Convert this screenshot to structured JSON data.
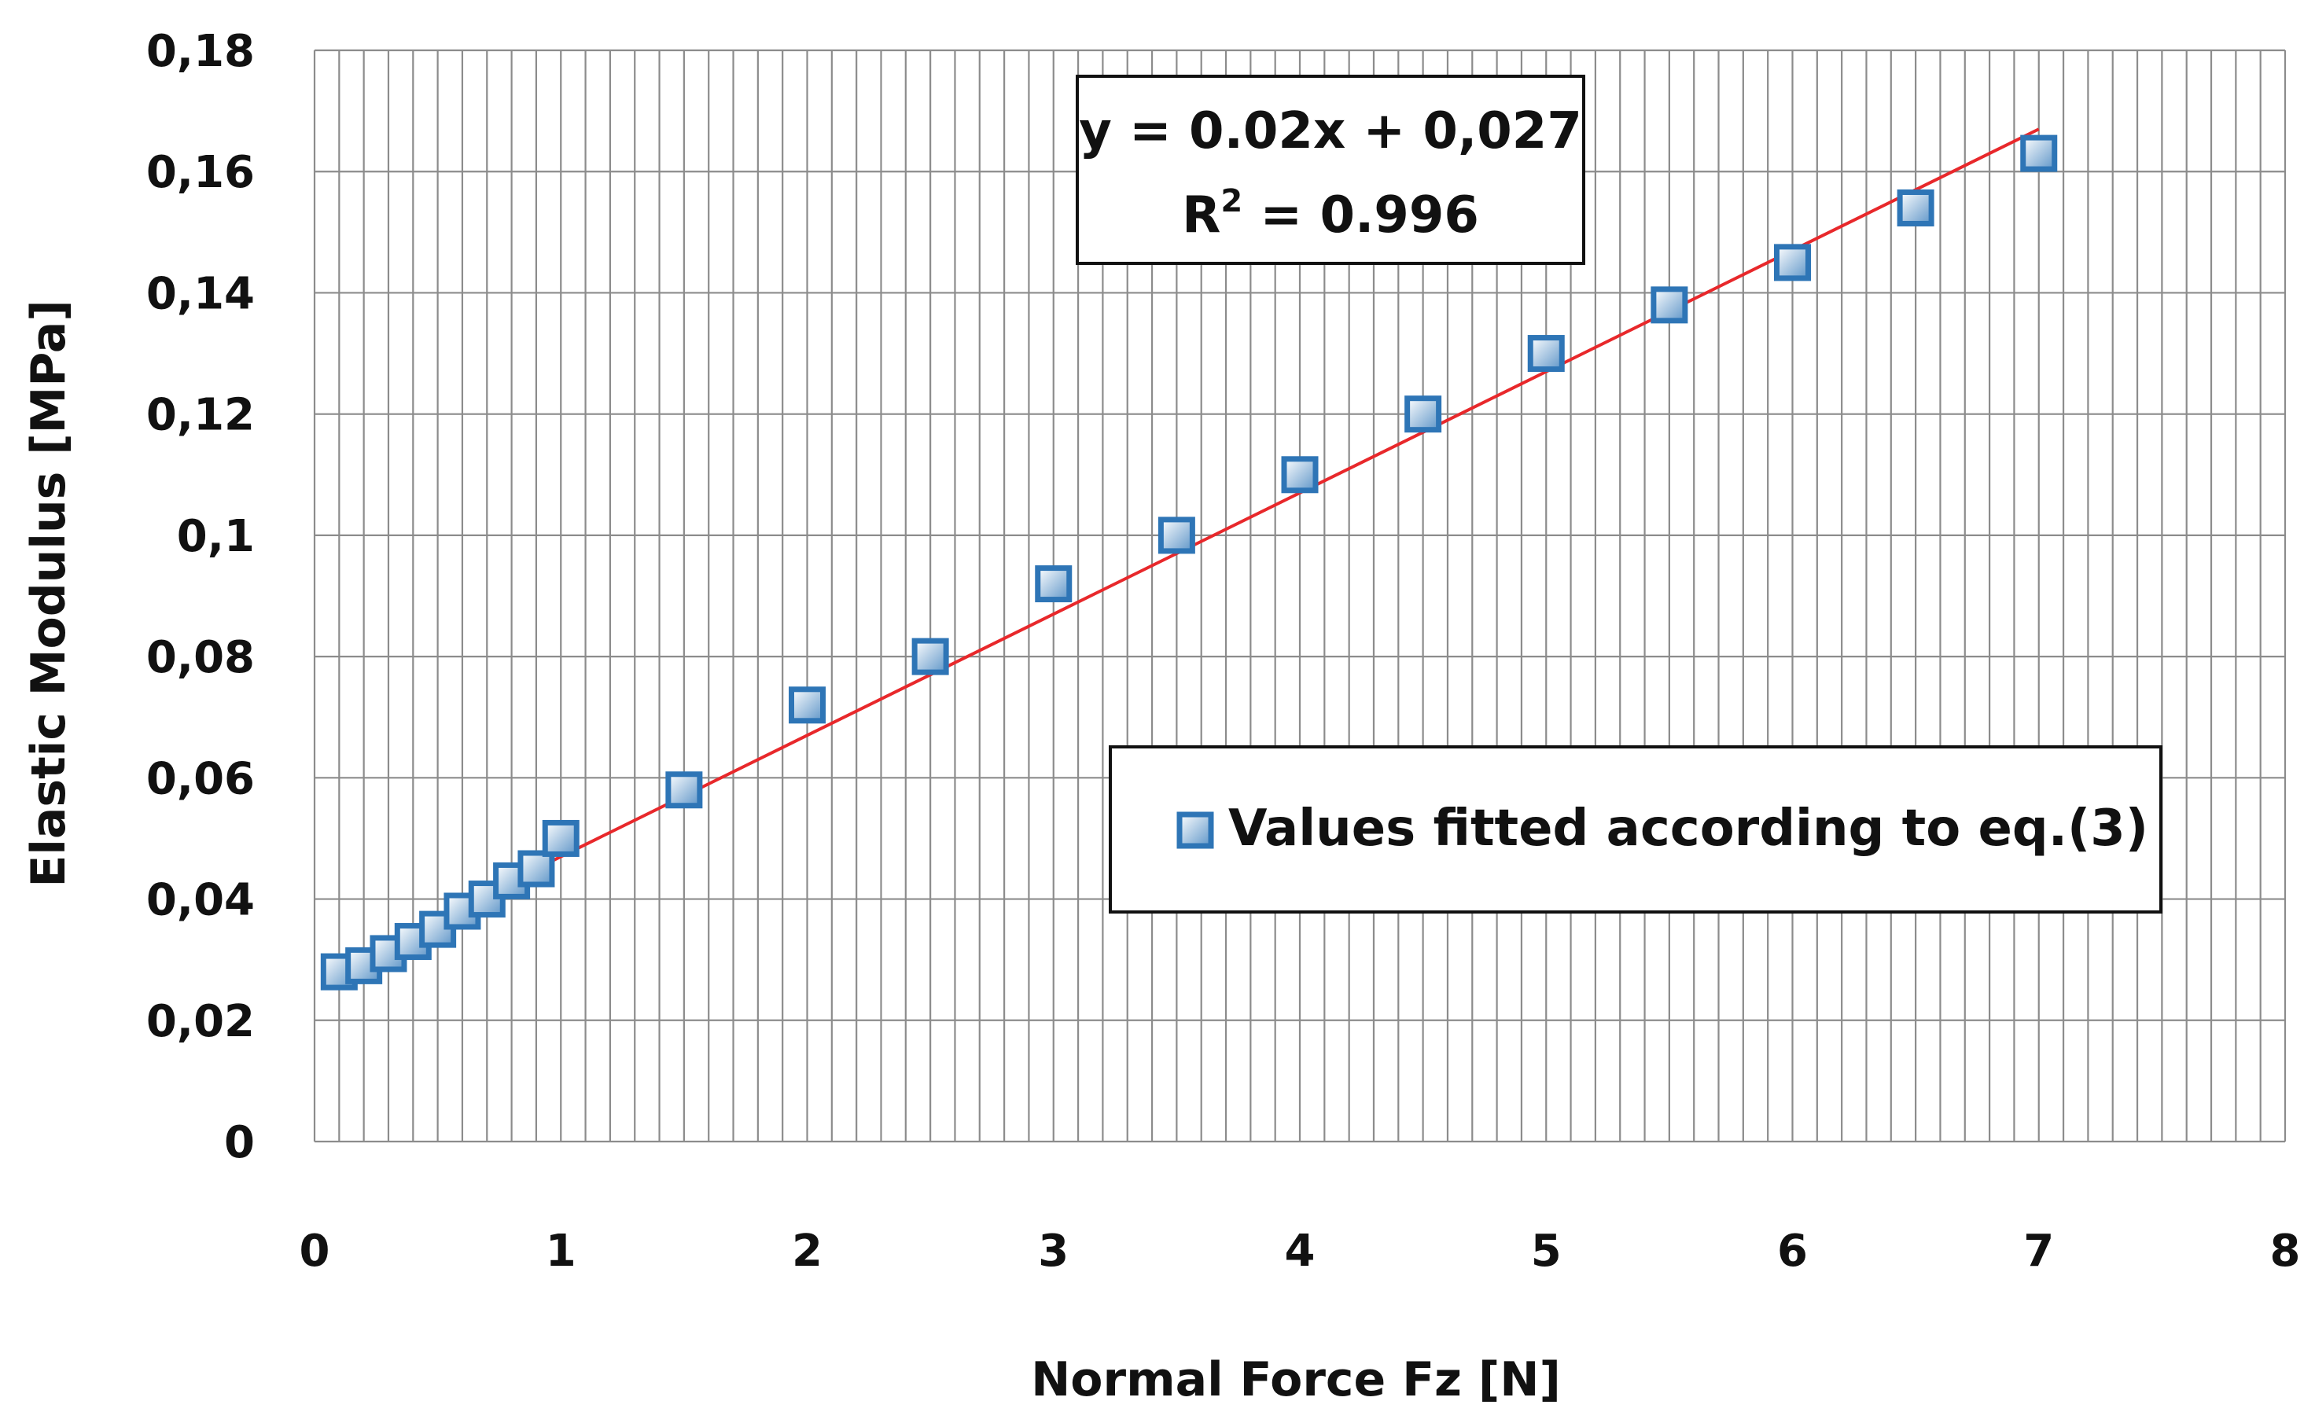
{
  "chart_data": {
    "type": "scatter",
    "title": "",
    "xlabel": "Normal Force Fz [N]",
    "ylabel": "Elastic Modulus [MPa]",
    "xlim": [
      0,
      8
    ],
    "ylim": [
      0,
      0.18
    ],
    "x_ticks": [
      "0",
      "1",
      "2",
      "3",
      "4",
      "5",
      "6",
      "7",
      "8"
    ],
    "y_ticks": [
      "0",
      "0,02",
      "0,04",
      "0,06",
      "0,08",
      "0,1",
      "0,12",
      "0,14",
      "0,16",
      "0,18"
    ],
    "x_minor_step": 0.1,
    "y_major_step": 0.02,
    "series": [
      {
        "name": "Values fitted according to eq.(3)",
        "marker": "square",
        "x": [
          0.1,
          0.2,
          0.3,
          0.4,
          0.5,
          0.6,
          0.7,
          0.8,
          0.9,
          1.0,
          1.5,
          2.0,
          2.5,
          3.0,
          3.5,
          4.0,
          4.5,
          5.0,
          5.5,
          6.0,
          6.5,
          7.0
        ],
        "y": [
          0.028,
          0.029,
          0.031,
          0.033,
          0.035,
          0.038,
          0.04,
          0.043,
          0.045,
          0.05,
          0.058,
          0.072,
          0.08,
          0.092,
          0.1,
          0.11,
          0.12,
          0.13,
          0.138,
          0.145,
          0.154,
          0.163
        ]
      }
    ],
    "trendline": {
      "type": "linear",
      "slope": 0.02,
      "intercept": 0.027,
      "x_range": [
        0.1,
        7.0
      ],
      "equation_line1": "y = 0.02x + 0,027",
      "equation_r_label": "R",
      "equation_r_sup": "2",
      "equation_r_value": " = 0.996"
    },
    "legend": {
      "label": "Values fitted according to eq.(3)",
      "position": "lower-right"
    },
    "grid": true
  },
  "colors": {
    "marker_stroke": "#2e75b6",
    "marker_fill_light": "#ffffff",
    "marker_fill_dark": "#5e95c8",
    "trendline": "#e8282b",
    "grid": "#8c8c8c",
    "text": "#111111"
  }
}
